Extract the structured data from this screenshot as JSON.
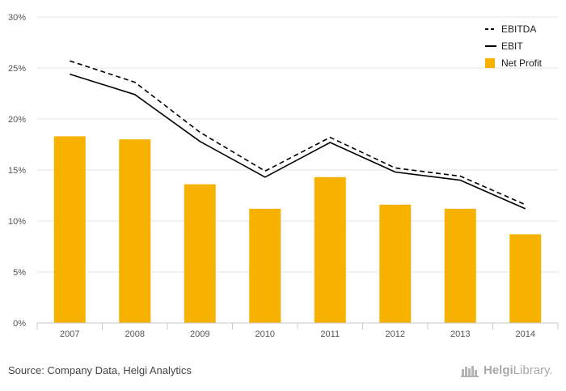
{
  "chart_data": {
    "type": "bar",
    "categories": [
      "2007",
      "2008",
      "2009",
      "2010",
      "2011",
      "2012",
      "2013",
      "2014"
    ],
    "series": [
      {
        "name": "EBITDA",
        "type": "line",
        "style": "dashed",
        "color": "#000000",
        "values": [
          25.7,
          23.6,
          18.7,
          14.9,
          18.2,
          15.2,
          14.4,
          11.6
        ]
      },
      {
        "name": "EBIT",
        "type": "line",
        "style": "solid",
        "color": "#000000",
        "values": [
          24.4,
          22.4,
          17.8,
          14.3,
          17.7,
          14.8,
          14.0,
          11.2
        ]
      },
      {
        "name": "Net Profit",
        "type": "bar",
        "color": "#f7b200",
        "values": [
          18.3,
          18.0,
          13.6,
          11.2,
          14.3,
          11.6,
          11.2,
          8.7
        ]
      }
    ],
    "y_ticks": [
      "0%",
      "5%",
      "10%",
      "15%",
      "20%",
      "25%",
      "30%"
    ],
    "ylim": [
      0,
      30
    ],
    "grid": true,
    "legend_position": "top-right"
  },
  "footer": {
    "source": "Source: Company Data, Helgi Analytics",
    "logo_part1": "Helgi",
    "logo_part2": "Library."
  }
}
